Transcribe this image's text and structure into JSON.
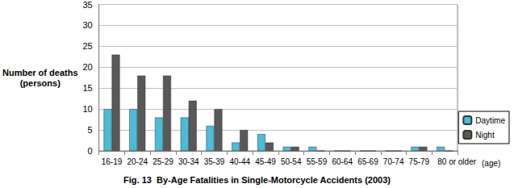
{
  "chart_data": {
    "type": "bar",
    "title": "Fig. 13  By-Age Fatalities in Single-Motorcycle Accidents (2003)",
    "y_label": "Number of deaths\n(persons)",
    "x_label": "(age)",
    "categories": [
      "16-19",
      "20-24",
      "25-29",
      "30-34",
      "35-39",
      "40-44",
      "45-49",
      "50-54",
      "55-59",
      "60-64",
      "65-69",
      "70-74",
      "75-79",
      "80 or older"
    ],
    "series": [
      {
        "name": "Daytime",
        "color": "#4bbbd9",
        "values": [
          10,
          10,
          8,
          8,
          6,
          2,
          4,
          1,
          1,
          0,
          0,
          0,
          1,
          1
        ]
      },
      {
        "name": "Night",
        "color": "#595959",
        "values": [
          23,
          18,
          18,
          12,
          10,
          5,
          2,
          1,
          0,
          0,
          0,
          0,
          1,
          0
        ]
      }
    ],
    "ylim": [
      0,
      35
    ],
    "yticks": [
      0,
      5,
      10,
      15,
      20,
      25,
      30,
      35
    ],
    "grid": true,
    "legend": "right"
  }
}
